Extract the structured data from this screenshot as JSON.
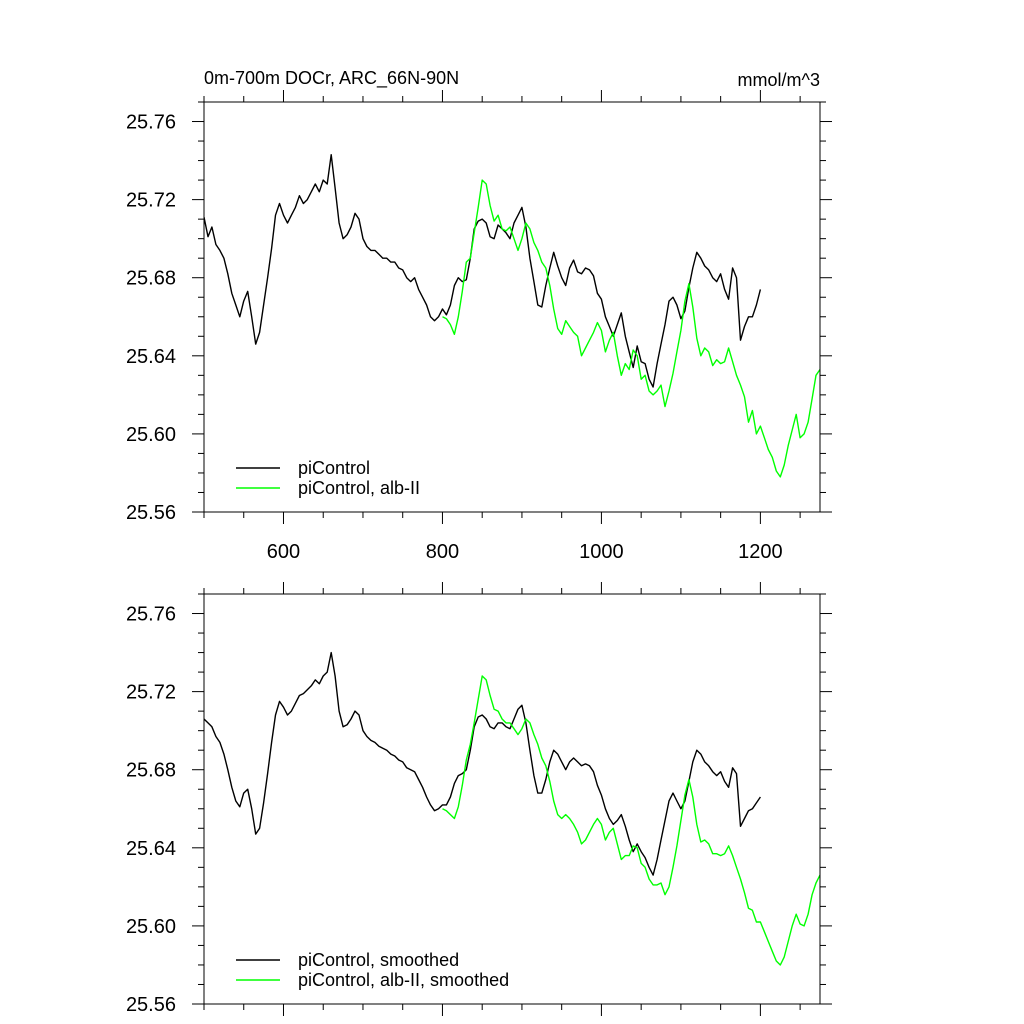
{
  "figure": {
    "title_left": "0m-700m DOCr, ARC_66N-90N",
    "title_right": "mmol/m^3"
  },
  "chart_data": [
    {
      "type": "line",
      "title": "0m-700m DOCr, ARC_66N-90N",
      "units": "mmol/m^3",
      "xlim": [
        500,
        1275
      ],
      "ylim": [
        25.56,
        25.77
      ],
      "x_ticks": [
        600,
        800,
        1000,
        1200
      ],
      "x_tick_labels": [
        "600",
        "800",
        "1000",
        "1200"
      ],
      "y_ticks": [
        25.56,
        25.6,
        25.64,
        25.68,
        25.72,
        25.76
      ],
      "y_tick_labels": [
        "25.56",
        "25.60",
        "25.64",
        "25.68",
        "25.72",
        "25.76"
      ],
      "grid": false,
      "legend_position": "bottom-left",
      "series": [
        {
          "name": "piControl",
          "color": "#000000",
          "x": [
            500,
            505,
            510,
            515,
            520,
            525,
            530,
            535,
            540,
            545,
            550,
            555,
            560,
            565,
            570,
            575,
            580,
            585,
            590,
            595,
            600,
            605,
            610,
            615,
            620,
            625,
            630,
            635,
            640,
            645,
            650,
            655,
            660,
            665,
            670,
            675,
            680,
            685,
            690,
            695,
            700,
            705,
            710,
            715,
            720,
            725,
            730,
            735,
            740,
            745,
            750,
            755,
            760,
            765,
            770,
            775,
            780,
            785,
            790,
            795,
            800,
            805,
            810,
            815,
            820,
            825,
            830,
            835,
            840,
            845,
            850,
            855,
            860,
            865,
            870,
            875,
            880,
            885,
            890,
            895,
            900,
            905,
            910,
            915,
            920,
            925,
            930,
            935,
            940,
            945,
            950,
            955,
            960,
            965,
            970,
            975,
            980,
            985,
            990,
            995,
            1000,
            1005,
            1010,
            1015,
            1020,
            1025,
            1030,
            1035,
            1040,
            1045,
            1050,
            1055,
            1060,
            1065,
            1070,
            1075,
            1080,
            1085,
            1090,
            1095,
            1100,
            1105,
            1110,
            1115,
            1120,
            1125,
            1130,
            1135,
            1140,
            1145,
            1150,
            1155,
            1160,
            1165,
            1170,
            1175,
            1180,
            1185,
            1190,
            1195,
            1200
          ],
          "y": [
            25.711,
            25.701,
            25.706,
            25.697,
            25.694,
            25.69,
            25.682,
            25.672,
            25.666,
            25.66,
            25.668,
            25.673,
            25.66,
            25.646,
            25.652,
            25.666,
            25.68,
            25.695,
            25.712,
            25.718,
            25.712,
            25.708,
            25.712,
            25.716,
            25.722,
            25.718,
            25.72,
            25.724,
            25.728,
            25.724,
            25.73,
            25.728,
            25.743,
            25.726,
            25.708,
            25.7,
            25.702,
            25.706,
            25.713,
            25.71,
            25.7,
            25.696,
            25.694,
            25.694,
            25.692,
            25.69,
            25.69,
            25.688,
            25.688,
            25.685,
            25.684,
            25.68,
            25.678,
            25.68,
            25.674,
            25.67,
            25.666,
            25.66,
            25.658,
            25.66,
            25.664,
            25.661,
            25.666,
            25.676,
            25.68,
            25.678,
            25.679,
            25.69,
            25.705,
            25.709,
            25.71,
            25.708,
            25.701,
            25.7,
            25.707,
            25.705,
            25.703,
            25.7,
            25.708,
            25.712,
            25.716,
            25.706,
            25.69,
            25.678,
            25.666,
            25.665,
            25.676,
            25.685,
            25.693,
            25.686,
            25.68,
            25.676,
            25.685,
            25.689,
            25.683,
            25.682,
            25.685,
            25.684,
            25.681,
            25.672,
            25.669,
            25.66,
            25.655,
            25.65,
            25.656,
            25.662,
            25.65,
            25.642,
            25.634,
            25.645,
            25.637,
            25.636,
            25.628,
            25.624,
            25.636,
            25.646,
            25.656,
            25.668,
            25.67,
            25.666,
            25.659,
            25.663,
            25.675,
            25.685,
            25.693,
            25.69,
            25.686,
            25.684,
            25.68,
            25.678,
            25.682,
            25.674,
            25.669,
            25.685,
            25.68,
            25.648,
            25.655,
            25.66,
            25.66,
            25.666,
            25.674
          ]
        },
        {
          "name": "piControl, alb-II",
          "color": "#00ff00",
          "x": [
            800,
            805,
            810,
            815,
            820,
            825,
            830,
            835,
            840,
            845,
            850,
            855,
            860,
            865,
            870,
            875,
            880,
            885,
            890,
            895,
            900,
            905,
            910,
            915,
            920,
            925,
            930,
            935,
            940,
            945,
            950,
            955,
            960,
            965,
            970,
            975,
            980,
            985,
            990,
            995,
            1000,
            1005,
            1010,
            1015,
            1020,
            1025,
            1030,
            1035,
            1040,
            1045,
            1050,
            1055,
            1060,
            1065,
            1070,
            1075,
            1080,
            1085,
            1090,
            1095,
            1100,
            1105,
            1110,
            1115,
            1120,
            1125,
            1130,
            1135,
            1140,
            1145,
            1150,
            1155,
            1160,
            1165,
            1170,
            1175,
            1180,
            1185,
            1190,
            1195,
            1200,
            1205,
            1210,
            1215,
            1220,
            1225,
            1230,
            1235,
            1240,
            1245,
            1250,
            1255,
            1260,
            1265,
            1270,
            1275
          ],
          "y": [
            25.66,
            25.659,
            25.656,
            25.651,
            25.66,
            25.673,
            25.688,
            25.69,
            25.703,
            25.716,
            25.73,
            25.728,
            25.717,
            25.709,
            25.712,
            25.705,
            25.704,
            25.706,
            25.7,
            25.694,
            25.7,
            25.708,
            25.705,
            25.698,
            25.694,
            25.688,
            25.685,
            25.676,
            25.664,
            25.654,
            25.651,
            25.658,
            25.655,
            25.652,
            25.65,
            25.64,
            25.644,
            25.648,
            25.652,
            25.657,
            25.653,
            25.642,
            25.648,
            25.652,
            25.64,
            25.63,
            25.636,
            25.633,
            25.643,
            25.64,
            25.628,
            25.63,
            25.622,
            25.62,
            25.622,
            25.625,
            25.614,
            25.622,
            25.631,
            25.642,
            25.653,
            25.668,
            25.677,
            25.665,
            25.649,
            25.64,
            25.644,
            25.642,
            25.635,
            25.638,
            25.636,
            25.637,
            25.644,
            25.637,
            25.63,
            25.625,
            25.619,
            25.606,
            25.612,
            25.6,
            25.604,
            25.598,
            25.592,
            25.588,
            25.581,
            25.578,
            25.584,
            25.594,
            25.602,
            25.61,
            25.598,
            25.6,
            25.606,
            25.618,
            25.63,
            25.633
          ]
        }
      ]
    },
    {
      "type": "line",
      "xlim": [
        500,
        1275
      ],
      "ylim": [
        25.56,
        25.77
      ],
      "x_ticks": [
        600,
        800,
        1000,
        1200
      ],
      "y_ticks": [
        25.56,
        25.6,
        25.64,
        25.68,
        25.72,
        25.76
      ],
      "y_tick_labels": [
        "25.56",
        "25.60",
        "25.64",
        "25.68",
        "25.72",
        "25.76"
      ],
      "grid": false,
      "legend_position": "bottom-left",
      "series": [
        {
          "name": "piControl, smoothed",
          "color": "#000000",
          "x": [
            500,
            505,
            510,
            515,
            520,
            525,
            530,
            535,
            540,
            545,
            550,
            555,
            560,
            565,
            570,
            575,
            580,
            585,
            590,
            595,
            600,
            605,
            610,
            615,
            620,
            625,
            630,
            635,
            640,
            645,
            650,
            655,
            660,
            665,
            670,
            675,
            680,
            685,
            690,
            695,
            700,
            705,
            710,
            715,
            720,
            725,
            730,
            735,
            740,
            745,
            750,
            755,
            760,
            765,
            770,
            775,
            780,
            785,
            790,
            795,
            800,
            805,
            810,
            815,
            820,
            825,
            830,
            835,
            840,
            845,
            850,
            855,
            860,
            865,
            870,
            875,
            880,
            885,
            890,
            895,
            900,
            905,
            910,
            915,
            920,
            925,
            930,
            935,
            940,
            945,
            950,
            955,
            960,
            965,
            970,
            975,
            980,
            985,
            990,
            995,
            1000,
            1005,
            1010,
            1015,
            1020,
            1025,
            1030,
            1035,
            1040,
            1045,
            1050,
            1055,
            1060,
            1065,
            1070,
            1075,
            1080,
            1085,
            1090,
            1095,
            1100,
            1105,
            1110,
            1115,
            1120,
            1125,
            1130,
            1135,
            1140,
            1145,
            1150,
            1155,
            1160,
            1165,
            1170,
            1175,
            1180,
            1185,
            1190,
            1195,
            1200
          ],
          "y": [
            25.706,
            25.704,
            25.702,
            25.697,
            25.694,
            25.688,
            25.68,
            25.671,
            25.664,
            25.661,
            25.668,
            25.67,
            25.66,
            25.647,
            25.65,
            25.663,
            25.678,
            25.694,
            25.708,
            25.715,
            25.712,
            25.708,
            25.71,
            25.714,
            25.718,
            25.719,
            25.721,
            25.723,
            25.726,
            25.724,
            25.728,
            25.73,
            25.74,
            25.728,
            25.71,
            25.702,
            25.703,
            25.706,
            25.71,
            25.708,
            25.7,
            25.697,
            25.695,
            25.694,
            25.692,
            25.691,
            25.69,
            25.688,
            25.687,
            25.685,
            25.684,
            25.681,
            25.68,
            25.679,
            25.675,
            25.671,
            25.666,
            25.662,
            25.659,
            25.66,
            25.662,
            25.662,
            25.666,
            25.673,
            25.677,
            25.678,
            25.68,
            25.69,
            25.702,
            25.707,
            25.708,
            25.706,
            25.702,
            25.701,
            25.704,
            25.704,
            25.702,
            25.701,
            25.706,
            25.711,
            25.713,
            25.704,
            25.69,
            25.677,
            25.668,
            25.668,
            25.675,
            25.684,
            25.69,
            25.688,
            25.684,
            25.68,
            25.684,
            25.686,
            25.684,
            25.682,
            25.683,
            25.682,
            25.679,
            25.672,
            25.667,
            25.66,
            25.655,
            25.652,
            25.654,
            25.657,
            25.651,
            25.644,
            25.638,
            25.642,
            25.638,
            25.635,
            25.63,
            25.626,
            25.634,
            25.644,
            25.654,
            25.664,
            25.668,
            25.664,
            25.66,
            25.664,
            25.674,
            25.684,
            25.69,
            25.688,
            25.684,
            25.682,
            25.679,
            25.677,
            25.679,
            25.674,
            25.671,
            25.681,
            25.678,
            25.651,
            25.655,
            25.659,
            25.66,
            25.663,
            25.666
          ]
        },
        {
          "name": "piControl, alb-II, smoothed",
          "color": "#00ff00",
          "x": [
            800,
            805,
            810,
            815,
            820,
            825,
            830,
            835,
            840,
            845,
            850,
            855,
            860,
            865,
            870,
            875,
            880,
            885,
            890,
            895,
            900,
            905,
            910,
            915,
            920,
            925,
            930,
            935,
            940,
            945,
            950,
            955,
            960,
            965,
            970,
            975,
            980,
            985,
            990,
            995,
            1000,
            1005,
            1010,
            1015,
            1020,
            1025,
            1030,
            1035,
            1040,
            1045,
            1050,
            1055,
            1060,
            1065,
            1070,
            1075,
            1080,
            1085,
            1090,
            1095,
            1100,
            1105,
            1110,
            1115,
            1120,
            1125,
            1130,
            1135,
            1140,
            1145,
            1150,
            1155,
            1160,
            1165,
            1170,
            1175,
            1180,
            1185,
            1190,
            1195,
            1200,
            1205,
            1210,
            1215,
            1220,
            1225,
            1230,
            1235,
            1240,
            1245,
            1250,
            1255,
            1260,
            1265,
            1270,
            1275
          ],
          "y": [
            25.66,
            25.659,
            25.657,
            25.655,
            25.661,
            25.672,
            25.685,
            25.693,
            25.704,
            25.716,
            25.728,
            25.726,
            25.718,
            25.711,
            25.71,
            25.706,
            25.704,
            25.704,
            25.701,
            25.698,
            25.701,
            25.706,
            25.704,
            25.698,
            25.693,
            25.686,
            25.682,
            25.674,
            25.664,
            25.657,
            25.655,
            25.657,
            25.655,
            25.652,
            25.648,
            25.642,
            25.644,
            25.648,
            25.652,
            25.655,
            25.652,
            25.644,
            25.648,
            25.65,
            25.642,
            25.634,
            25.636,
            25.636,
            25.641,
            25.64,
            25.632,
            25.63,
            25.624,
            25.621,
            25.621,
            25.622,
            25.616,
            25.62,
            25.63,
            25.641,
            25.654,
            25.667,
            25.675,
            25.666,
            25.652,
            25.643,
            25.644,
            25.642,
            25.637,
            25.637,
            25.636,
            25.637,
            25.641,
            25.636,
            25.63,
            25.624,
            25.617,
            25.609,
            25.608,
            25.602,
            25.602,
            25.597,
            25.592,
            25.587,
            25.582,
            25.58,
            25.584,
            25.592,
            25.6,
            25.606,
            25.601,
            25.6,
            25.606,
            25.616,
            25.622,
            25.626
          ]
        }
      ]
    }
  ]
}
